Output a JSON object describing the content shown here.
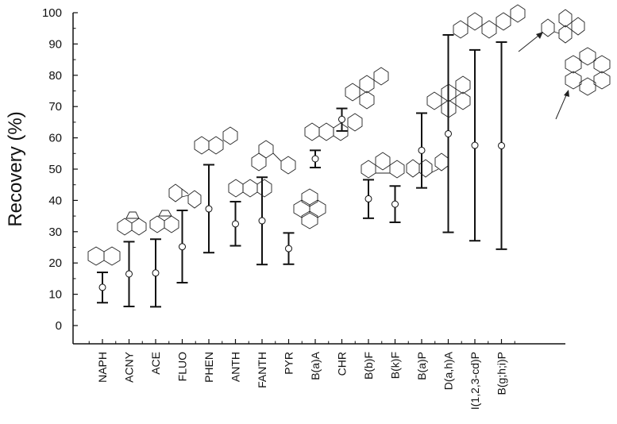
{
  "chart_data": {
    "type": "errorbar",
    "ylabel": "Recovery (%)",
    "ylim": [
      0,
      100
    ],
    "yticks": [
      0,
      10,
      20,
      30,
      40,
      50,
      60,
      70,
      80,
      90,
      100
    ],
    "categories": [
      "NAPH",
      "ACNY",
      "ACE",
      "FLUO",
      "PHEN",
      "ANTH",
      "FANTH",
      "PYR",
      "B(a)A",
      "CHR",
      "B(b)F",
      "B(k)F",
      "B(a)P",
      "D(a,h)A",
      "I(1,2,3-cd)P",
      "B(g;h;i)P"
    ],
    "series": [
      {
        "mean": [
          12.2,
          16.5,
          16.8,
          25.2,
          37.3,
          32.5,
          33.5,
          24.6,
          53.3,
          65.9,
          40.5,
          38.8,
          56.0,
          61.3,
          57.6,
          57.5
        ],
        "upper": [
          17.0,
          26.8,
          27.6,
          36.8,
          51.4,
          39.6,
          47.4,
          29.6,
          56.0,
          69.4,
          46.6,
          44.6,
          67.9,
          92.9,
          88.1,
          90.6
        ],
        "lower": [
          7.3,
          6.1,
          6.0,
          13.7,
          23.3,
          25.5,
          19.5,
          19.6,
          50.5,
          62.2,
          34.3,
          33.0,
          44.0,
          29.8,
          27.1,
          24.4
        ]
      }
    ],
    "grid": false,
    "legend": "none"
  }
}
